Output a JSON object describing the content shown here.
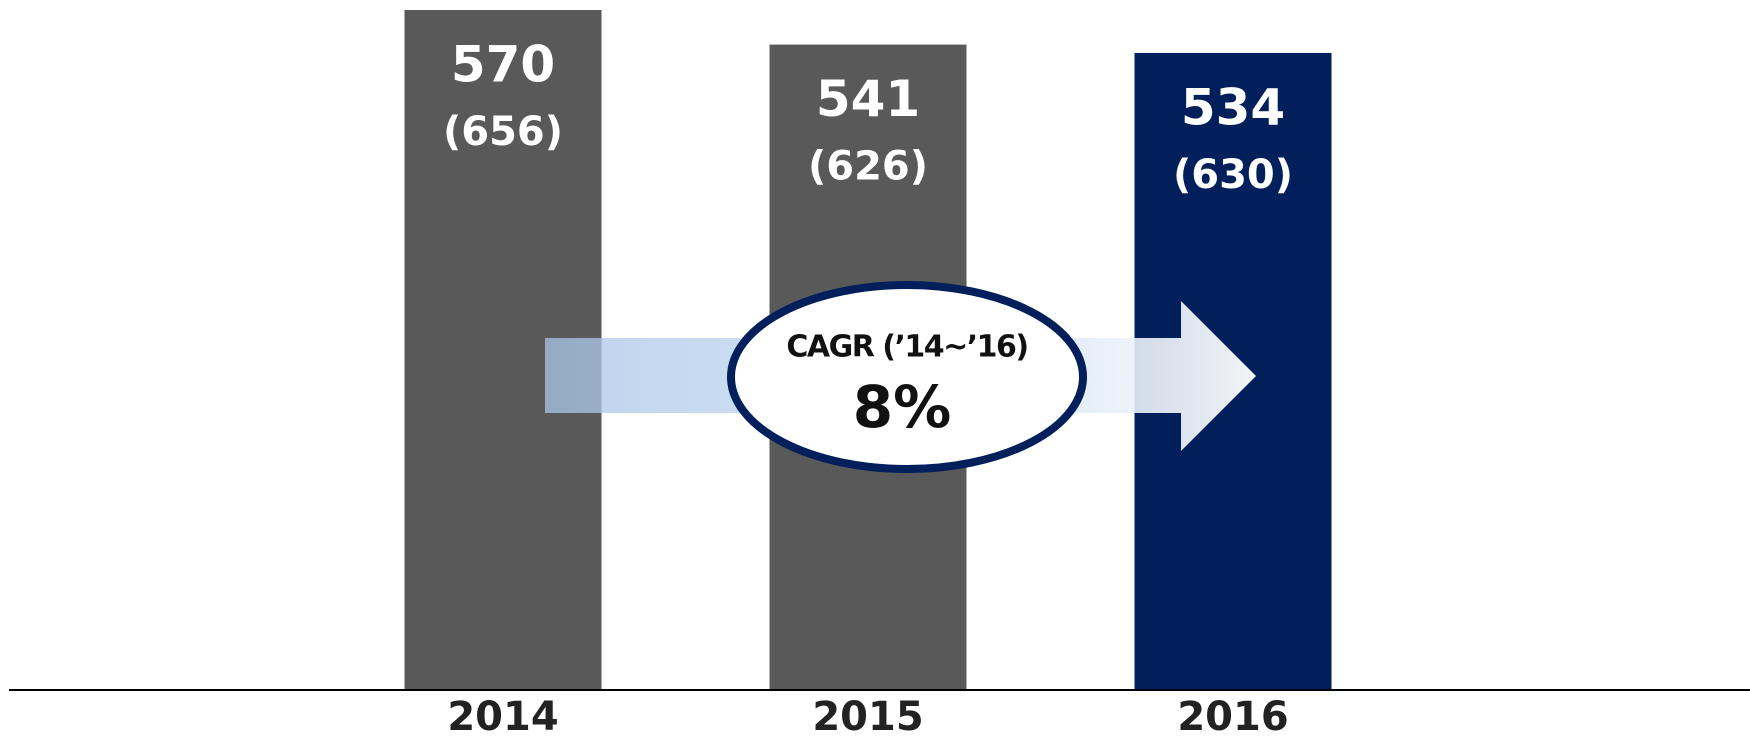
{
  "chart_data": {
    "type": "bar",
    "categories": [
      "2014",
      "2015",
      "2016"
    ],
    "values": [
      570,
      541,
      534
    ],
    "secondary_values": [
      656,
      626,
      630
    ],
    "secondary_value_labels": [
      "(656)",
      "(626)",
      "(630)"
    ],
    "colors": [
      "#595959",
      "#595959",
      "#001f5b"
    ],
    "annotations": {
      "title": "CAGR (’14~’16)",
      "value": "8%"
    }
  }
}
